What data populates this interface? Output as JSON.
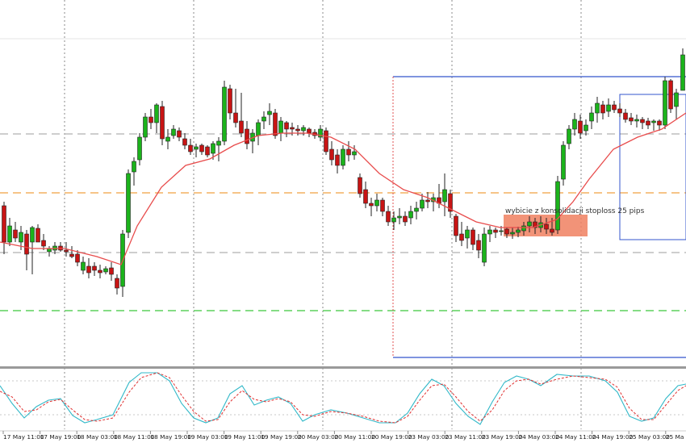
{
  "chart_data": [
    {
      "type": "candlestick",
      "title": "",
      "x_ticks": [
        "17 May 11:00",
        "17 May 19:00",
        "18 May 03:00",
        "18 May 11:00",
        "18 May 19:00",
        "19 May 03:00",
        "19 May 11:00",
        "19 May 19:00",
        "20 May 03:00",
        "20 May 11:00",
        "20 May 19:00",
        "23 May 03:00",
        "23 May 11:00",
        "23 May 19:00",
        "24 May 03:00",
        "24 May 11:00",
        "24 May 19:00",
        "25 May 03:00",
        "25 Ma"
      ],
      "annotation": "wybicie z konsolidacji stoploss 25 pips",
      "moving_average_color": "#e84c4c",
      "bull_color": "#1bb31b",
      "bear_color": "#c81414",
      "levels": [
        {
          "name": "gray-dashed-upper",
          "style": "dashed",
          "color": "#b0b0b0"
        },
        {
          "name": "orange-dashed",
          "style": "dashed",
          "color": "#f0a040"
        },
        {
          "name": "gray-dashed-lower",
          "style": "dashed",
          "color": "#b0b0b0"
        },
        {
          "name": "green-dashed",
          "style": "dashed",
          "color": "#3cc83c"
        }
      ],
      "boxes_color": "#3355cc",
      "zone_color": "#f08060"
    },
    {
      "type": "line",
      "title": "",
      "indicator": "stochastic",
      "series": [
        {
          "color": "#30b8c8",
          "style": "solid"
        },
        {
          "color": "#e03030",
          "style": "dashed"
        }
      ]
    }
  ]
}
